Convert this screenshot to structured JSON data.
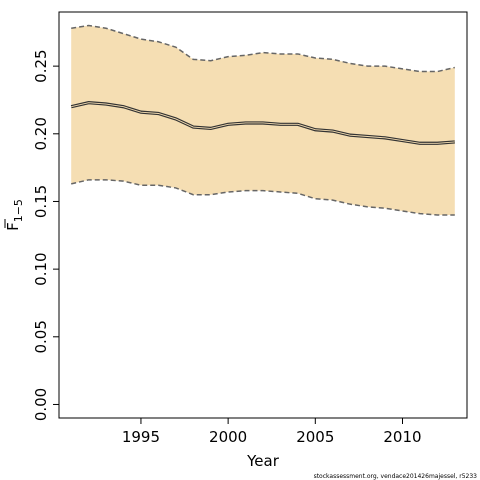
{
  "chart_data": {
    "type": "line",
    "title": "",
    "xlabel": "Year",
    "ylabel": {
      "base": "F",
      "subscript": "1−5"
    },
    "xlim": [
      1990.3,
      2013.7
    ],
    "ylim": [
      -0.01,
      0.29
    ],
    "xticks": [
      1995,
      2000,
      2005,
      2010
    ],
    "xtick_labels": [
      "1995",
      "2000",
      "2005",
      "2010"
    ],
    "yticks": [
      0.0,
      0.05,
      0.1,
      0.15,
      0.2,
      0.25
    ],
    "ytick_labels": [
      "0.00",
      "0.05",
      "0.10",
      "0.15",
      "0.20",
      "0.25"
    ],
    "grid": false,
    "legend": "none",
    "x": [
      1991,
      1992,
      1993,
      1994,
      1995,
      1996,
      1997,
      1998,
      1999,
      2000,
      2001,
      2002,
      2003,
      2004,
      2005,
      2006,
      2007,
      2008,
      2009,
      2010,
      2011,
      2012,
      2013
    ],
    "series": [
      {
        "role": "upper",
        "style": "dashed",
        "color": "#666666",
        "values": [
          0.278,
          0.28,
          0.278,
          0.274,
          0.27,
          0.268,
          0.264,
          0.255,
          0.254,
          0.257,
          0.258,
          0.26,
          0.259,
          0.259,
          0.256,
          0.255,
          0.252,
          0.25,
          0.25,
          0.248,
          0.246,
          0.246,
          0.249
        ]
      },
      {
        "role": "estimate",
        "style": "solid-double",
        "color": "#333333",
        "values": [
          0.22,
          0.223,
          0.222,
          0.22,
          0.216,
          0.215,
          0.211,
          0.205,
          0.204,
          0.207,
          0.208,
          0.208,
          0.207,
          0.207,
          0.203,
          0.202,
          0.199,
          0.198,
          0.197,
          0.195,
          0.193,
          0.193,
          0.194
        ]
      },
      {
        "role": "lower",
        "style": "dashed",
        "color": "#666666",
        "values": [
          0.163,
          0.166,
          0.166,
          0.165,
          0.162,
          0.162,
          0.16,
          0.155,
          0.155,
          0.157,
          0.158,
          0.158,
          0.157,
          0.156,
          0.152,
          0.151,
          0.148,
          0.146,
          0.145,
          0.143,
          0.141,
          0.14,
          0.14
        ]
      }
    ],
    "band_color": "#f5deb3"
  },
  "watermark": "stockassessment.org, vendace201426majessel, r5233"
}
